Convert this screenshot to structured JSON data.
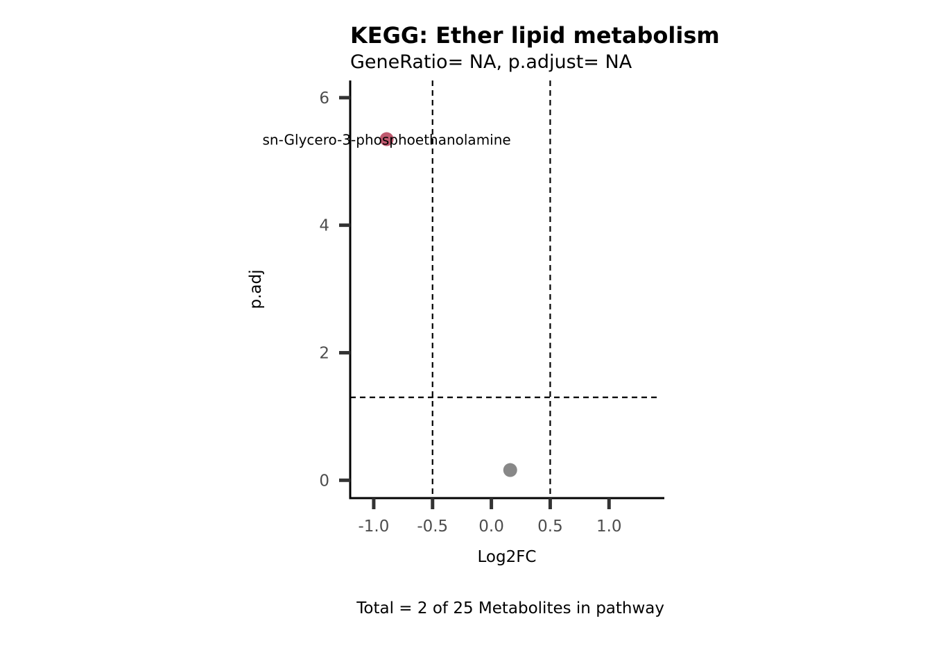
{
  "chart_data": {
    "type": "scatter",
    "title": "KEGG: Ether lipid metabolism",
    "subtitle": "GeneRatio= NA, p.adjust= NA",
    "xlabel": "Log2FC",
    "ylabel": "p.adj",
    "caption": "Total = 2 of 25 Metabolites in pathway",
    "xlim": [
      -1.2,
      1.47
    ],
    "ylim": [
      -0.28,
      6.27
    ],
    "x_ticks": [
      -1.0,
      -0.5,
      0.0,
      0.5,
      1.0
    ],
    "x_tick_labels": [
      "-1.0",
      "-0.5",
      "0.0",
      "0.5",
      "1.0"
    ],
    "y_ticks": [
      0,
      2,
      4,
      6
    ],
    "y_tick_labels": [
      "0",
      "2",
      "4",
      "6"
    ],
    "threshold_lines": {
      "vertical": [
        -0.5,
        0.5
      ],
      "horizontal": [
        1.3
      ]
    },
    "grid": false,
    "points": [
      {
        "x": -0.89,
        "y": 5.35,
        "color": "#c0596f",
        "label": "sn-Glycero-3-phosphoethanolamine"
      },
      {
        "x": 0.16,
        "y": 0.16,
        "color": "#888888",
        "label": ""
      }
    ]
  }
}
